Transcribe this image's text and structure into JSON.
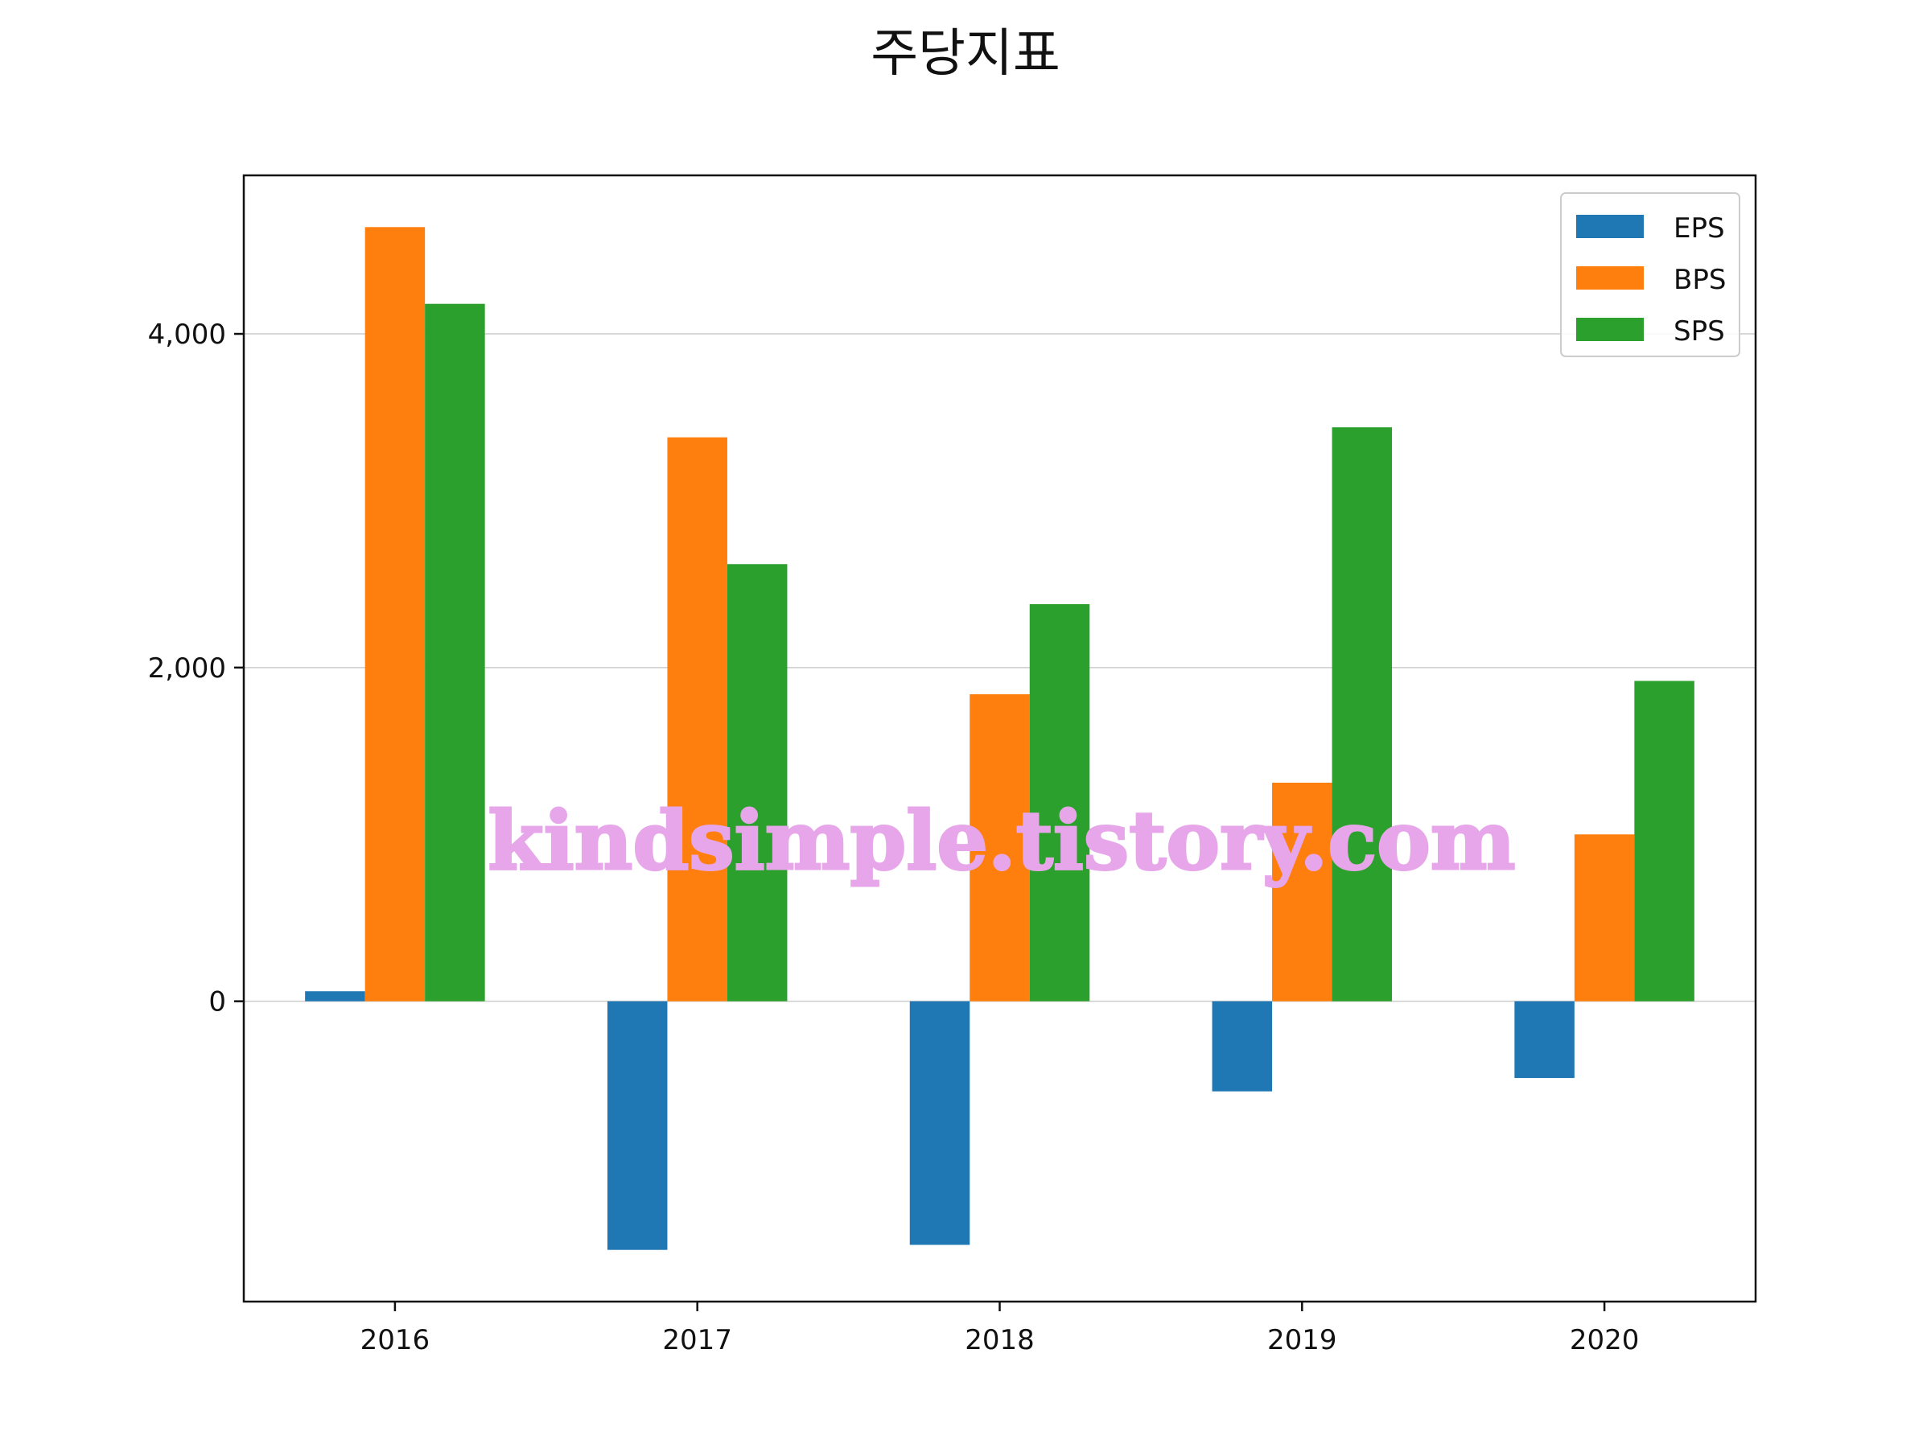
{
  "chart_data": {
    "type": "bar",
    "title": "주당지표",
    "xlabel": "",
    "ylabel": "",
    "categories": [
      "2016",
      "2017",
      "2018",
      "2019",
      "2020"
    ],
    "series": [
      {
        "name": "EPS",
        "color": "#1f77b4",
        "values": [
          60,
          -1490,
          -1460,
          -540,
          -460
        ]
      },
      {
        "name": "BPS",
        "color": "#ff7f0e",
        "values": [
          4640,
          3380,
          1840,
          1310,
          1000
        ]
      },
      {
        "name": "SPS",
        "color": "#2ca02c",
        "values": [
          4180,
          2620,
          2380,
          3440,
          1920
        ]
      }
    ],
    "ylim": [
      -1800,
      4950
    ],
    "yticks": [
      0,
      2000,
      4000
    ],
    "ytick_labels": [
      "0",
      "2,000",
      "4,000"
    ],
    "grid": "horizontal",
    "legend": "top-right",
    "watermark": "kindsimple.tistory.com"
  }
}
